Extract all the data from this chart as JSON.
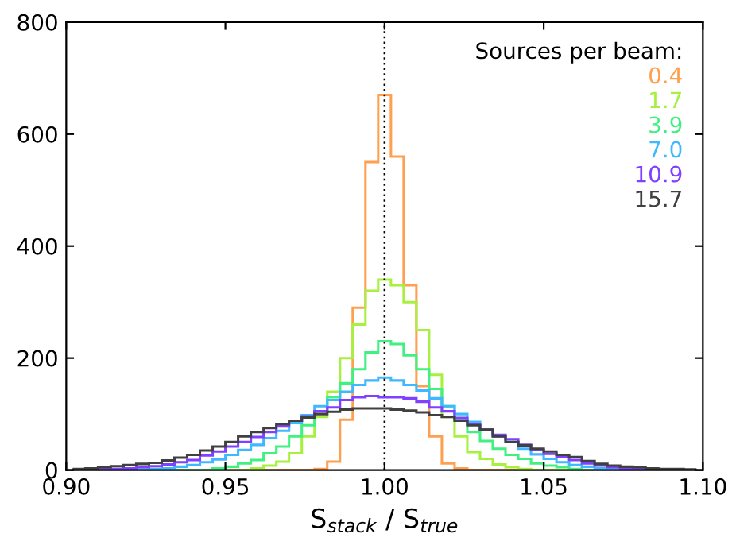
{
  "chart_data": {
    "type": "histogram",
    "xlabel": "S$_{stack}$ / S$_{true}$",
    "legend_title": "Sources per beam:",
    "legend": "top right",
    "grid": false,
    "xlim": [
      0.9,
      1.1
    ],
    "ylim": [
      0,
      800
    ],
    "xticks": [
      {
        "value": 0.9,
        "label": "0.90"
      },
      {
        "value": 0.95,
        "label": "0.95"
      },
      {
        "value": 1.0,
        "label": "1.00"
      },
      {
        "value": 1.05,
        "label": "1.05"
      },
      {
        "value": 1.1,
        "label": "1.10"
      }
    ],
    "yticks": [
      0,
      200,
      400,
      600,
      800
    ],
    "ref_lines": [
      {
        "axis": "x",
        "value": 1.0,
        "color": "#000000",
        "line_style": "dotted"
      }
    ],
    "bins": [
      0.902,
      0.906,
      0.91,
      0.914,
      0.918,
      0.922,
      0.926,
      0.93,
      0.934,
      0.938,
      0.942,
      0.946,
      0.95,
      0.954,
      0.958,
      0.962,
      0.966,
      0.97,
      0.974,
      0.978,
      0.982,
      0.986,
      0.99,
      0.994,
      0.998,
      1.002,
      1.006,
      1.01,
      1.014,
      1.018,
      1.022,
      1.026,
      1.03,
      1.034,
      1.038,
      1.042,
      1.046,
      1.05,
      1.054,
      1.058,
      1.062,
      1.066,
      1.07,
      1.074,
      1.078,
      1.082,
      1.086,
      1.09,
      1.094,
      1.098
    ],
    "series": [
      {
        "name": "0.4",
        "color": "#ffa050",
        "values": [
          0,
          0,
          0,
          0,
          0,
          0,
          0,
          0,
          0,
          0,
          0,
          0,
          0,
          0,
          0,
          0,
          0,
          0,
          0,
          2,
          15,
          90,
          290,
          550,
          670,
          560,
          330,
          150,
          60,
          12,
          3,
          0,
          0,
          0,
          0,
          0,
          0,
          0,
          0,
          0,
          0,
          0,
          0,
          0,
          0,
          0,
          0,
          0,
          0
        ]
      },
      {
        "name": "1.7",
        "color": "#a8f040",
        "values": [
          0,
          0,
          0,
          0,
          0,
          0,
          0,
          0,
          0,
          0,
          0,
          0,
          0,
          0,
          3,
          8,
          15,
          30,
          60,
          95,
          140,
          200,
          260,
          320,
          340,
          330,
          300,
          250,
          170,
          95,
          60,
          32,
          20,
          10,
          5,
          2,
          0,
          0,
          0,
          0,
          0,
          0,
          0,
          0,
          0,
          0,
          0,
          0,
          0
        ]
      },
      {
        "name": "3.9",
        "color": "#40f080",
        "values": [
          0,
          0,
          0,
          0,
          0,
          0,
          0,
          0,
          0,
          0,
          0,
          3,
          6,
          12,
          18,
          30,
          42,
          60,
          80,
          105,
          130,
          155,
          180,
          210,
          230,
          225,
          205,
          180,
          145,
          114,
          90,
          68,
          52,
          38,
          27,
          20,
          12,
          8,
          5,
          2,
          0,
          0,
          0,
          0,
          0,
          0,
          0,
          0,
          0
        ]
      },
      {
        "name": "7.0",
        "color": "#40b8ff",
        "values": [
          0,
          0,
          0,
          0,
          0,
          1,
          2,
          3,
          6,
          9,
          14,
          19,
          27,
          36,
          45,
          57,
          70,
          84,
          98,
          114,
          125,
          140,
          152,
          160,
          165,
          160,
          152,
          142,
          128,
          114,
          100,
          86,
          72,
          60,
          50,
          38,
          28,
          20,
          14,
          9,
          6,
          3,
          2,
          1,
          0,
          0,
          0,
          0,
          0
        ]
      },
      {
        "name": "10.9",
        "color": "#8040ff",
        "values": [
          0,
          1,
          2,
          2,
          3,
          5,
          7,
          10,
          14,
          18,
          26,
          33,
          42,
          50,
          59,
          68,
          78,
          88,
          96,
          105,
          112,
          125,
          130,
          132,
          130,
          130,
          128,
          122,
          112,
          105,
          93,
          82,
          72,
          63,
          55,
          45,
          36,
          29,
          23,
          18,
          12,
          8,
          5,
          3,
          2,
          1,
          1,
          0,
          0
        ]
      },
      {
        "name": "15.7",
        "color": "#404040",
        "values": [
          2,
          3,
          5,
          7,
          9,
          11,
          13,
          17,
          22,
          27,
          35,
          42,
          50,
          60,
          68,
          75,
          82,
          88,
          94,
          100,
          104,
          108,
          110,
          110,
          110,
          108,
          106,
          103,
          98,
          95,
          88,
          80,
          72,
          60,
          50,
          44,
          38,
          33,
          27,
          23,
          16,
          11,
          8,
          6,
          5,
          3,
          2,
          2,
          1
        ]
      }
    ]
  }
}
